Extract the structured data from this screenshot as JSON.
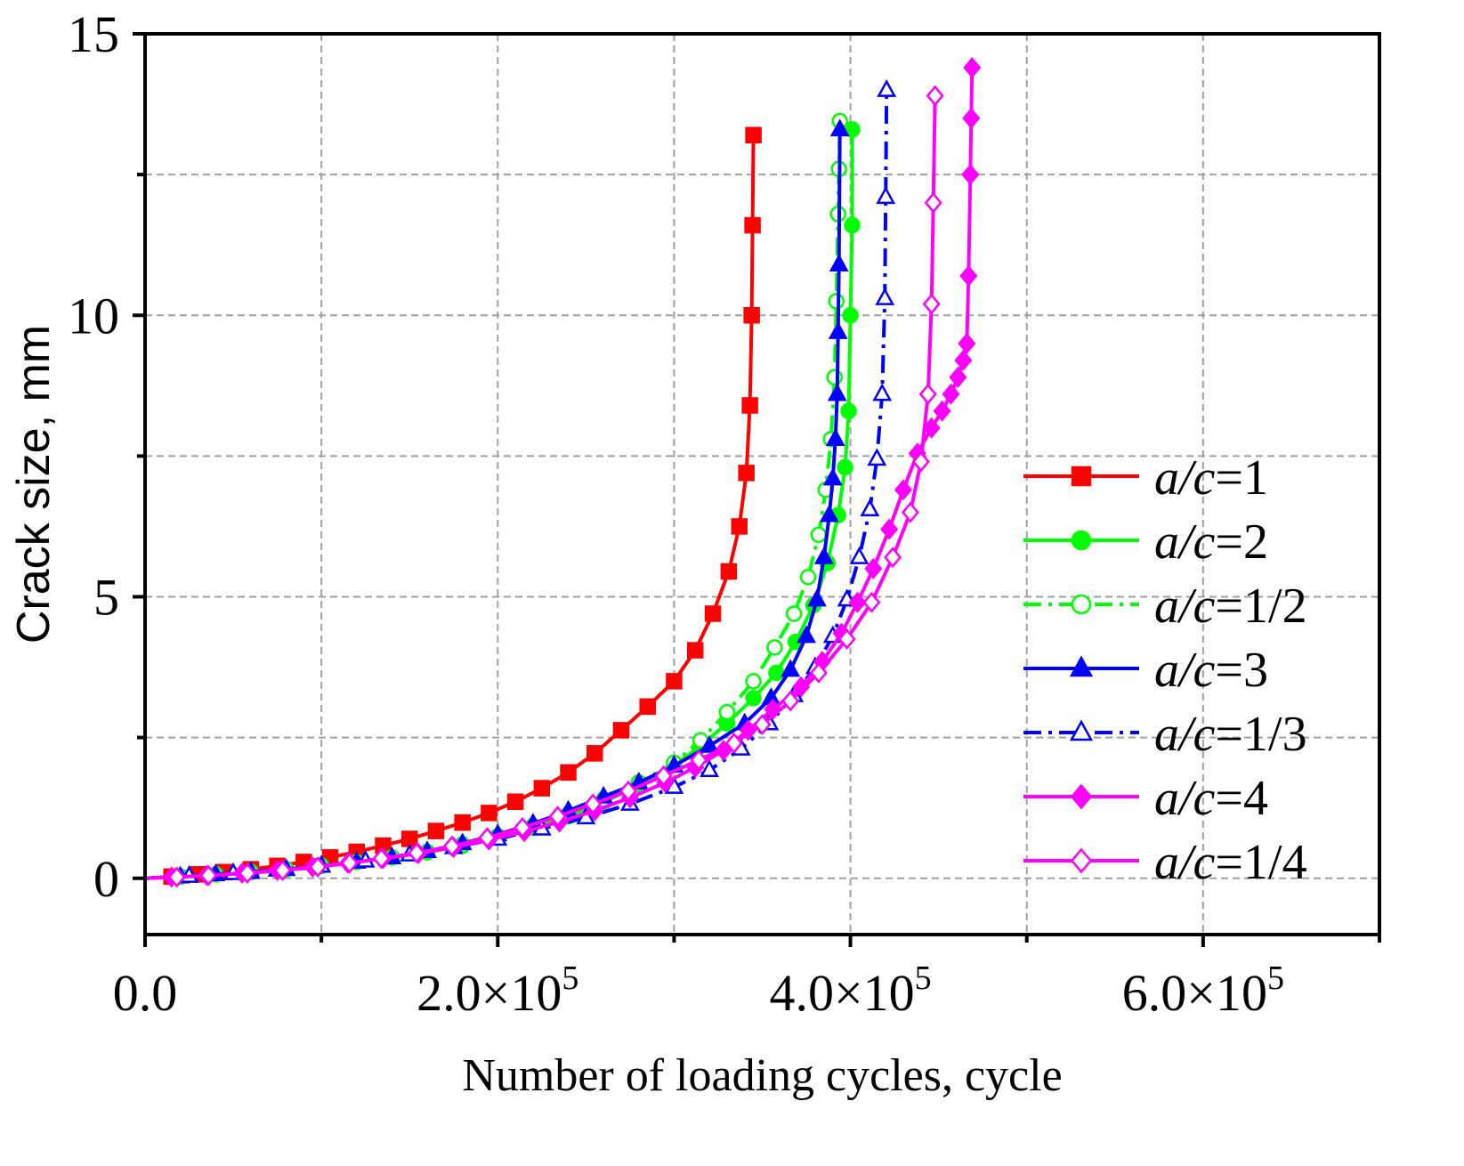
{
  "chart_data": {
    "type": "line",
    "title": "",
    "xlabel": "Number of loading cycles, cycle",
    "ylabel": "Crack size, mm",
    "xlim": [
      0,
      700000
    ],
    "ylim": [
      -1,
      15
    ],
    "grid": true,
    "legend_position": "right",
    "x_tick_labels": [
      {
        "mantissa": "0.0",
        "exp": ""
      },
      {
        "mantissa": "2.0×10",
        "exp": "5"
      },
      {
        "mantissa": "4.0×10",
        "exp": "5"
      },
      {
        "mantissa": "6.0×10",
        "exp": "5"
      }
    ],
    "x_ticks": [
      0,
      200000,
      400000,
      600000
    ],
    "y_tick_labels": [
      "0",
      "5",
      "10",
      "15"
    ],
    "y_ticks": [
      0,
      5,
      10,
      15
    ],
    "series": [
      {
        "name": "a/c=1",
        "label_italic": "a/c",
        "label_rest": "=1",
        "color": "#ff0000",
        "marker": "square",
        "filled": true,
        "dash": "",
        "x": [
          0,
          15000,
          30000,
          45000,
          60000,
          75000,
          90000,
          105000,
          120000,
          135000,
          150000,
          165000,
          180000,
          195000,
          210000,
          225000,
          240000,
          255000,
          270000,
          285000,
          300000,
          312000,
          322000,
          331000,
          337000,
          341000,
          343000,
          344000,
          344500,
          345000
        ],
        "y": [
          0,
          0.03,
          0.07,
          0.11,
          0.16,
          0.22,
          0.29,
          0.37,
          0.47,
          0.58,
          0.7,
          0.84,
          0.99,
          1.16,
          1.36,
          1.6,
          1.88,
          2.22,
          2.63,
          3.05,
          3.5,
          4.05,
          4.7,
          5.45,
          6.25,
          7.2,
          8.4,
          10.0,
          11.6,
          13.2
        ]
      },
      {
        "name": "a/c=2",
        "label_italic": "a/c",
        "label_rest": "=2",
        "color": "#00ff00",
        "marker": "circle",
        "filled": true,
        "dash": "",
        "x": [
          0,
          20000,
          40000,
          60000,
          80000,
          100000,
          120000,
          140000,
          160000,
          180000,
          200000,
          220000,
          240000,
          260000,
          280000,
          300000,
          315000,
          330000,
          345000,
          358000,
          369000,
          379000,
          387000,
          393000,
          397000,
          399000,
          400000,
          401000,
          401000
        ],
        "y": [
          0,
          0.03,
          0.07,
          0.11,
          0.16,
          0.22,
          0.29,
          0.37,
          0.46,
          0.58,
          0.72,
          0.9,
          1.1,
          1.35,
          1.65,
          2.0,
          2.35,
          2.75,
          3.2,
          3.65,
          4.2,
          4.85,
          5.6,
          6.45,
          7.3,
          8.3,
          10.0,
          11.6,
          13.3
        ]
      },
      {
        "name": "a/c=1/2",
        "label_italic": "a/c",
        "label_rest": "=1/2",
        "color": "#00ff00",
        "marker": "circle",
        "filled": false,
        "dash": "20 8 4 8",
        "x": [
          0,
          20000,
          40000,
          60000,
          80000,
          100000,
          120000,
          140000,
          160000,
          180000,
          200000,
          220000,
          240000,
          260000,
          280000,
          300000,
          315000,
          330000,
          345000,
          357000,
          368000,
          376000,
          382000,
          386000,
          389000,
          391000,
          392000,
          393000,
          393500,
          394000
        ],
        "y": [
          0,
          0.03,
          0.07,
          0.11,
          0.16,
          0.22,
          0.29,
          0.37,
          0.47,
          0.6,
          0.75,
          0.93,
          1.14,
          1.4,
          1.7,
          2.05,
          2.45,
          2.95,
          3.5,
          4.1,
          4.7,
          5.35,
          6.1,
          6.9,
          7.8,
          8.9,
          10.25,
          11.8,
          12.6,
          13.45
        ]
      },
      {
        "name": "a/c=3",
        "label_italic": "a/c",
        "label_rest": "=3",
        "color": "#0000ff",
        "marker": "triangle",
        "filled": true,
        "dash": "",
        "x": [
          0,
          20000,
          40000,
          60000,
          80000,
          100000,
          120000,
          140000,
          160000,
          180000,
          200000,
          220000,
          240000,
          260000,
          280000,
          300000,
          320000,
          340000,
          355000,
          366000,
          375000,
          381000,
          385000,
          388000,
          390000,
          391500,
          392500,
          393000,
          393500,
          394000
        ],
        "y": [
          0,
          0.03,
          0.07,
          0.11,
          0.16,
          0.22,
          0.29,
          0.37,
          0.48,
          0.62,
          0.78,
          0.97,
          1.2,
          1.45,
          1.7,
          2.0,
          2.35,
          2.75,
          3.2,
          3.7,
          4.3,
          4.95,
          5.7,
          6.45,
          7.1,
          7.8,
          8.6,
          9.7,
          10.9,
          13.3
        ]
      },
      {
        "name": "a/c=1/3",
        "label_italic": "a/c",
        "label_rest": "=1/3",
        "color": "#0000ff",
        "marker": "triangle",
        "filled": false,
        "dash": "20 8 4 8",
        "x": [
          0,
          25000,
          50000,
          75000,
          100000,
          125000,
          150000,
          175000,
          200000,
          225000,
          250000,
          275000,
          300000,
          320000,
          338000,
          354000,
          368000,
          380000,
          390000,
          398000,
          405000,
          411000,
          415000,
          418000,
          419500,
          420000,
          420500
        ],
        "y": [
          0,
          0.04,
          0.09,
          0.15,
          0.22,
          0.31,
          0.42,
          0.55,
          0.7,
          0.88,
          1.08,
          1.32,
          1.62,
          1.92,
          2.3,
          2.75,
          3.25,
          3.75,
          4.3,
          4.95,
          5.7,
          6.55,
          7.45,
          8.6,
          10.3,
          12.1,
          14.0
        ]
      },
      {
        "name": "a/c=4",
        "label_italic": "a/c",
        "label_rest": "=4",
        "color": "#ff00ff",
        "marker": "diamond",
        "filled": true,
        "dash": "",
        "x": [
          0,
          15000,
          35000,
          55000,
          75000,
          95000,
          115000,
          135000,
          155000,
          175000,
          195000,
          215000,
          235000,
          255000,
          275000,
          295000,
          312000,
          328000,
          342000,
          356000,
          372000,
          384000,
          395000,
          404000,
          413000,
          422000,
          430000,
          438000,
          446000,
          452000,
          457000,
          461000,
          464000,
          466000,
          467000,
          468000,
          468500,
          469000
        ],
        "y": [
          0,
          0.02,
          0.05,
          0.09,
          0.14,
          0.2,
          0.27,
          0.35,
          0.44,
          0.55,
          0.68,
          0.83,
          1.0,
          1.2,
          1.43,
          1.7,
          1.97,
          2.27,
          2.63,
          3.0,
          3.4,
          3.85,
          4.35,
          4.9,
          5.5,
          6.2,
          6.9,
          7.55,
          8.0,
          8.3,
          8.6,
          8.9,
          9.2,
          9.5,
          10.7,
          12.5,
          13.5,
          14.4
        ]
      },
      {
        "name": "a/c=1/4",
        "label_italic": "a/c",
        "label_rest": "=1/4",
        "color": "#ff00ff",
        "marker": "diamond",
        "filled": false,
        "dash": "",
        "x": [
          0,
          18000,
          36000,
          58000,
          78000,
          98000,
          116000,
          134000,
          154000,
          174000,
          194000,
          214000,
          234000,
          254000,
          274000,
          294000,
          314000,
          334000,
          350000,
          366000,
          382000,
          398000,
          412000,
          424000,
          434000,
          440000,
          444000,
          446000,
          447000,
          448000
        ],
        "y": [
          0,
          0.02,
          0.05,
          0.09,
          0.14,
          0.2,
          0.27,
          0.35,
          0.45,
          0.57,
          0.72,
          0.9,
          1.1,
          1.32,
          1.55,
          1.82,
          2.1,
          2.4,
          2.73,
          3.15,
          3.65,
          4.25,
          4.9,
          5.7,
          6.5,
          7.4,
          8.6,
          10.2,
          12.0,
          13.9
        ]
      }
    ]
  }
}
